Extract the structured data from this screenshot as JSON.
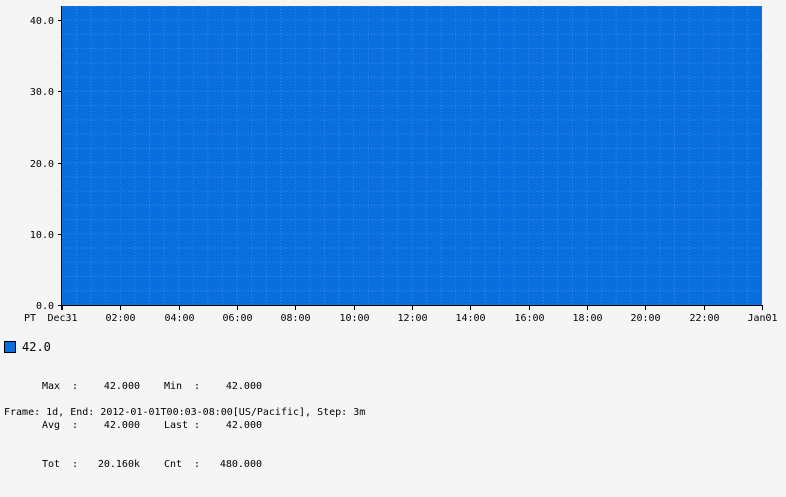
{
  "chart_data": {
    "type": "area",
    "title": "",
    "xlabel": "",
    "ylabel": "",
    "timezone_label": "PT",
    "x_tick_labels": [
      "Dec31",
      "02:00",
      "04:00",
      "06:00",
      "08:00",
      "10:00",
      "12:00",
      "14:00",
      "16:00",
      "18:00",
      "20:00",
      "22:00",
      "Jan01"
    ],
    "x_range_hours": [
      0,
      24
    ],
    "ylim": [
      0,
      42
    ],
    "y_ticks": [
      0,
      10,
      20,
      30,
      40
    ],
    "y_tick_labels": [
      "0.0",
      "10.0",
      "20.0",
      "30.0",
      "40.0"
    ],
    "series": [
      {
        "name": "42.0",
        "color": "#0a6fde",
        "x_hours": [
          0,
          24
        ],
        "values": [
          42,
          42
        ]
      }
    ]
  },
  "legend": {
    "title": "42.0",
    "stats": [
      {
        "label1": "Max",
        "value1": "42.000",
        "label2": "Min",
        "value2": "42.000"
      },
      {
        "label1": "Avg",
        "value1": "42.000",
        "label2": "Last",
        "value2": "42.000"
      },
      {
        "label1": "Tot",
        "value1": "20.160k",
        "label2": "Cnt",
        "value2": "480.000"
      }
    ]
  },
  "footer": "Frame: 1d, End: 2012-01-01T00:03-08:00[US/Pacific], Step: 3m"
}
